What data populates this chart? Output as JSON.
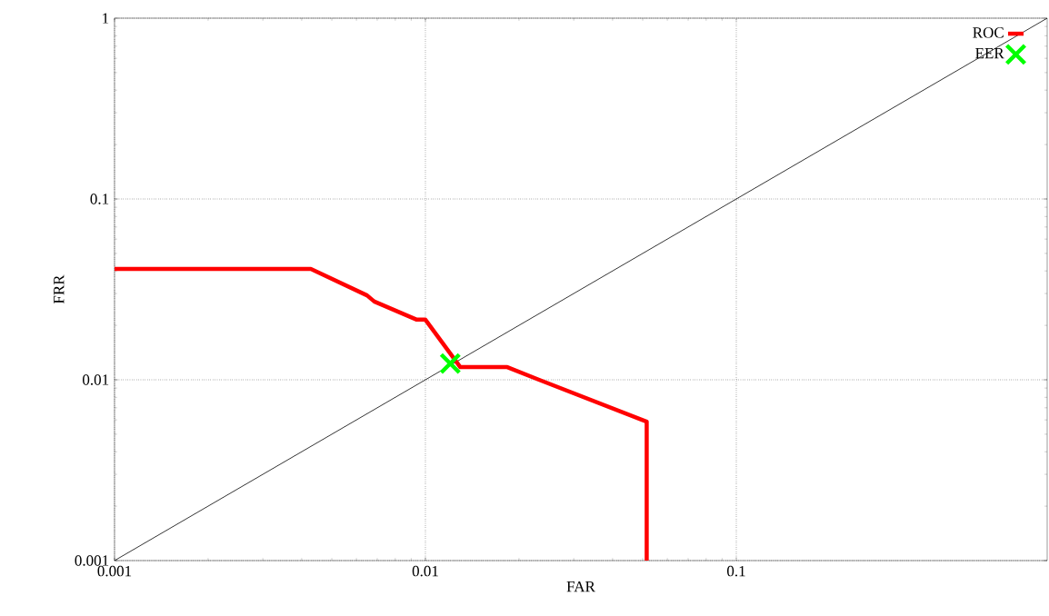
{
  "chart_data": {
    "type": "line",
    "xlabel": "FAR",
    "ylabel": "FRR",
    "log": "xy",
    "grid": true,
    "legend": "top right",
    "xlim": [
      0.001,
      1
    ],
    "ylim": [
      0.001,
      1
    ],
    "xticks": [
      0.001,
      0.01,
      0.1
    ],
    "yticks": [
      0.001,
      0.01,
      0.1,
      1
    ],
    "series": [
      {
        "color": "#000000",
        "x": [
          0.001,
          1
        ],
        "values": [
          0.001,
          1
        ]
      },
      {
        "name": "ROC",
        "color": "#ff0000",
        "x": [
          0.001,
          0.00428,
          0.00649,
          0.00685,
          0.00938,
          0.01,
          0.01295,
          0.01834,
          0.0232,
          0.0515,
          0.0515
        ],
        "values": [
          0.041,
          0.041,
          0.0293,
          0.0271,
          0.0215,
          0.0215,
          0.01175,
          0.01175,
          0.01,
          0.00587,
          0.001
        ]
      },
      {
        "type": "scatter",
        "name": "EER",
        "color": "#00ff00",
        "marker": "cross",
        "x": [
          0.01202
        ],
        "values": [
          0.0123
        ]
      }
    ]
  }
}
